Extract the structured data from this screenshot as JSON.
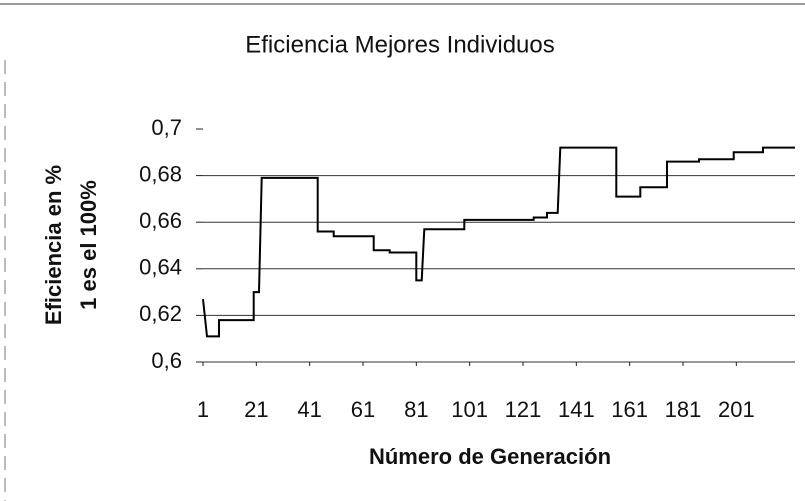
{
  "chart_data": {
    "type": "line",
    "title": "Eficiencia Mejores Individuos",
    "xlabel": "Número de Generación",
    "ylabel": [
      "Eficiencia en %",
      "1 es el 100%"
    ],
    "x": [
      1,
      2.5,
      7,
      7,
      20,
      20,
      22,
      23,
      44,
      44,
      50,
      50,
      65,
      65,
      71,
      71,
      81,
      81,
      83,
      84,
      99,
      99,
      125,
      125,
      130,
      130,
      134,
      135,
      156,
      156,
      165,
      165,
      175,
      175,
      187,
      187,
      200,
      200,
      211,
      211,
      223
    ],
    "series": [
      {
        "color": "#000000",
        "values": [
          0.627,
          0.611,
          0.611,
          0.618,
          0.618,
          0.63,
          0.63,
          0.679,
          0.679,
          0.656,
          0.656,
          0.654,
          0.654,
          0.648,
          0.648,
          0.647,
          0.647,
          0.635,
          0.635,
          0.657,
          0.657,
          0.661,
          0.661,
          0.662,
          0.662,
          0.664,
          0.664,
          0.692,
          0.692,
          0.671,
          0.671,
          0.675,
          0.675,
          0.686,
          0.686,
          0.687,
          0.687,
          0.69,
          0.69,
          0.692,
          0.692
        ]
      }
    ],
    "xlim": [
      1,
      223
    ],
    "xticks": [
      1,
      21,
      41,
      61,
      81,
      101,
      121,
      141,
      161,
      181,
      201
    ],
    "ylim": [
      0.6,
      0.7
    ],
    "yticks": [
      {
        "value": 0.6,
        "label": "0,6"
      },
      {
        "value": 0.62,
        "label": "0,62"
      },
      {
        "value": 0.64,
        "label": "0,64"
      },
      {
        "value": 0.66,
        "label": "0,66"
      },
      {
        "value": 0.68,
        "label": "0,68"
      },
      {
        "value": 0.7,
        "label": "0,7"
      }
    ],
    "grid": true
  }
}
